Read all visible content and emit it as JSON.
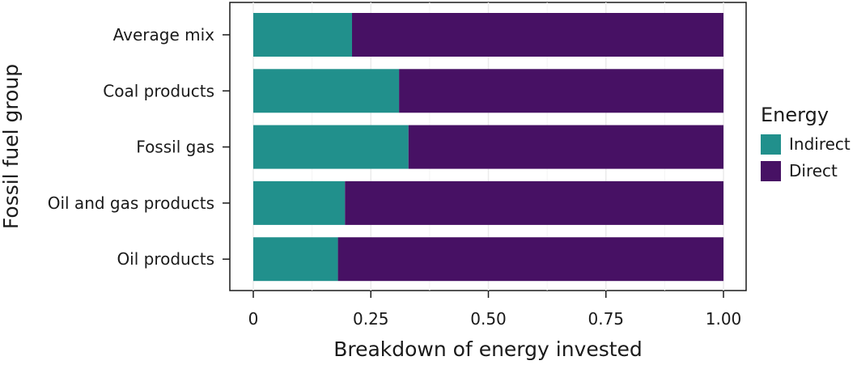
{
  "chart_data": {
    "type": "bar",
    "orientation": "horizontal",
    "stacked": true,
    "categories": [
      "Average mix",
      "Coal products",
      "Fossil gas",
      "Oil and gas products",
      "Oil products"
    ],
    "series": [
      {
        "name": "Indirect",
        "values": [
          0.21,
          0.31,
          0.33,
          0.195,
          0.18
        ],
        "color": "#21908c"
      },
      {
        "name": "Direct",
        "values": [
          0.79,
          0.69,
          0.67,
          0.805,
          0.82
        ],
        "color": "#471164"
      }
    ],
    "xlabel": "Breakdown of energy invested",
    "ylabel": "Fossil fuel group",
    "xlim": [
      0,
      1
    ],
    "xticks": [
      "0",
      "0.25",
      "0.50",
      "0.75",
      "1.00"
    ],
    "grid": true,
    "legend": {
      "title": "Energy",
      "position": "right"
    }
  }
}
